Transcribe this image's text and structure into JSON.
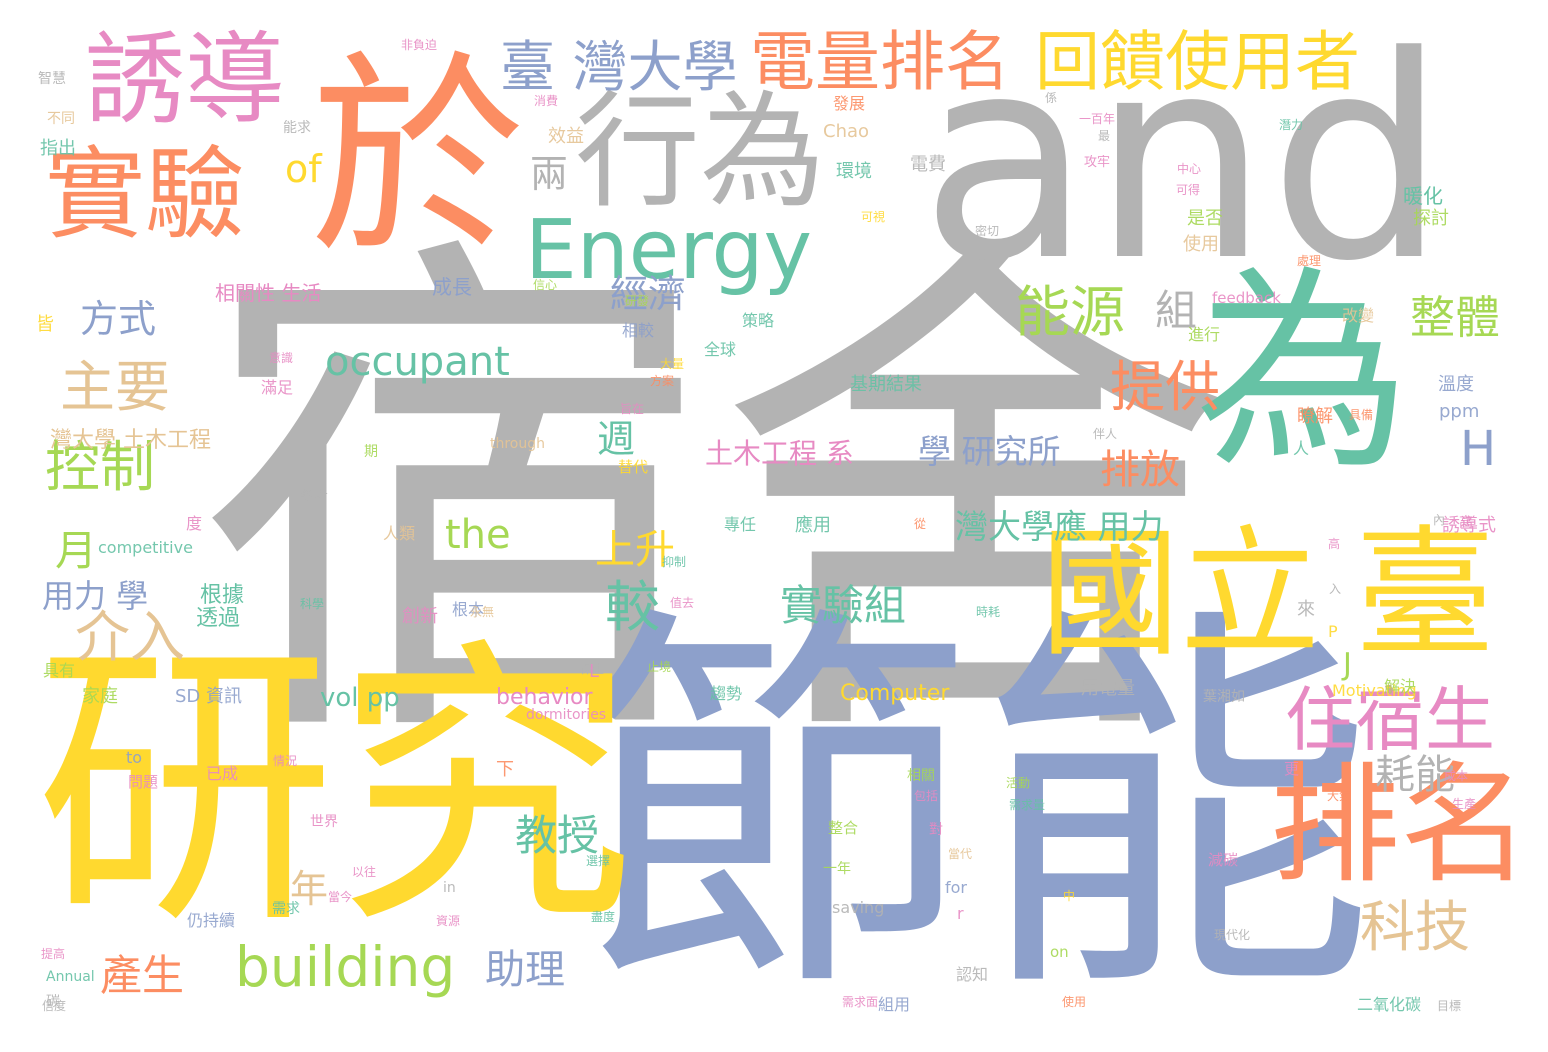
{
  "palette": {
    "gray": "#B3B3B3",
    "orange": "#FC8D62",
    "teal": "#66C2A5",
    "blue": "#8DA0CB",
    "pink": "#E78AC3",
    "green": "#A6D854",
    "yellow": "#FFD92F",
    "tan": "#E5C494"
  },
  "words": [
    {
      "text": "宿舍",
      "color": "gray"
    },
    {
      "text": "and",
      "color": "gray"
    },
    {
      "text": "節能",
      "color": "blue"
    },
    {
      "text": "研究",
      "color": "yellow"
    },
    {
      "text": "於",
      "color": "orange"
    },
    {
      "text": "為",
      "color": "teal"
    },
    {
      "text": "國立",
      "color": "yellow"
    },
    {
      "text": "臺",
      "color": "yellow"
    },
    {
      "text": "排名",
      "color": "orange"
    },
    {
      "text": "行為",
      "color": "gray"
    },
    {
      "text": "誘導",
      "color": "pink"
    },
    {
      "text": "實驗",
      "color": "orange"
    },
    {
      "text": "Energy",
      "color": "teal"
    },
    {
      "text": "住宿生",
      "color": "pink"
    },
    {
      "text": "電量排名",
      "color": "orange"
    },
    {
      "text": "回饋使用者",
      "color": "yellow"
    },
    {
      "text": "臺 灣大學",
      "color": "blue"
    },
    {
      "text": "building",
      "color": "green"
    },
    {
      "text": "能源",
      "color": "green"
    },
    {
      "text": "控制",
      "color": "green"
    },
    {
      "text": "介入",
      "color": "tan"
    },
    {
      "text": "主要",
      "color": "tan"
    },
    {
      "text": "提供",
      "color": "orange"
    },
    {
      "text": "科技",
      "color": "tan"
    },
    {
      "text": "整體",
      "color": "green"
    },
    {
      "text": "occupant",
      "color": "teal"
    },
    {
      "text": "較",
      "color": "teal"
    },
    {
      "text": "實驗組",
      "color": "teal"
    },
    {
      "text": "經濟",
      "color": "blue"
    },
    {
      "text": "方式",
      "color": "blue"
    },
    {
      "text": "排放",
      "color": "orange"
    },
    {
      "text": "耗能",
      "color": "gray"
    },
    {
      "text": "教授",
      "color": "teal"
    },
    {
      "text": "產生",
      "color": "orange"
    },
    {
      "text": "助理",
      "color": "blue"
    },
    {
      "text": "the",
      "color": "green"
    },
    {
      "text": "上升",
      "color": "yellow"
    },
    {
      "text": "週",
      "color": "teal"
    },
    {
      "text": "組",
      "color": "gray"
    },
    {
      "text": "兩",
      "color": "gray"
    },
    {
      "text": "of",
      "color": "yellow"
    },
    {
      "text": "H",
      "color": "blue"
    },
    {
      "text": "月",
      "color": "green"
    },
    {
      "text": "年",
      "color": "tan"
    },
    {
      "text": "J",
      "color": "green"
    },
    {
      "text": "灣大學應 用力",
      "color": "teal"
    },
    {
      "text": "學 研究所",
      "color": "blue"
    },
    {
      "text": "土木工程 系",
      "color": "pink"
    },
    {
      "text": "用力 學",
      "color": "blue"
    },
    {
      "text": "vol pp",
      "color": "teal"
    },
    {
      "text": "behavior",
      "color": "pink"
    },
    {
      "text": "Computer",
      "color": "yellow"
    },
    {
      "text": "灣大學 土木工程",
      "color": "tan"
    },
    {
      "text": "相關性 生活",
      "color": "pink"
    },
    {
      "text": "成長",
      "color": "blue"
    },
    {
      "text": "透過",
      "color": "teal"
    },
    {
      "text": "根據",
      "color": "teal"
    },
    {
      "text": "基期結果",
      "color": "teal"
    },
    {
      "text": "瞭解",
      "color": "orange"
    },
    {
      "text": "ppm",
      "color": "blue"
    },
    {
      "text": "溫度",
      "color": "blue"
    },
    {
      "text": "暖化",
      "color": "teal"
    },
    {
      "text": "探討",
      "color": "green"
    },
    {
      "text": "是否",
      "color": "green"
    },
    {
      "text": "使用",
      "color": "tan"
    },
    {
      "text": "環境",
      "color": "teal"
    },
    {
      "text": "電費",
      "color": "gray"
    },
    {
      "text": "發展",
      "color": "orange"
    },
    {
      "text": "Chao",
      "color": "tan"
    },
    {
      "text": "效益",
      "color": "tan"
    },
    {
      "text": "指出",
      "color": "teal"
    },
    {
      "text": "皆",
      "color": "yellow"
    },
    {
      "text": "feedback",
      "color": "pink"
    },
    {
      "text": "改變",
      "color": "tan"
    },
    {
      "text": "進行",
      "color": "green"
    },
    {
      "text": "相較",
      "color": "blue"
    },
    {
      "text": "策略",
      "color": "teal"
    },
    {
      "text": "全球",
      "color": "teal"
    },
    {
      "text": "滿足",
      "color": "pink"
    },
    {
      "text": "人",
      "color": "teal"
    },
    {
      "text": "誘導式",
      "color": "pink"
    },
    {
      "text": "應用",
      "color": "teal"
    },
    {
      "text": "專任",
      "color": "teal"
    },
    {
      "text": "人類",
      "color": "tan"
    },
    {
      "text": "創新",
      "color": "pink"
    },
    {
      "text": "根本",
      "color": "blue"
    },
    {
      "text": "L",
      "color": "pink"
    },
    {
      "text": "趨勢",
      "color": "teal"
    },
    {
      "text": "家庭",
      "color": "green"
    },
    {
      "text": "SD 資訊",
      "color": "blue"
    },
    {
      "text": "用電量",
      "color": "gray"
    },
    {
      "text": "葉湘如",
      "color": "gray"
    },
    {
      "text": "dormitories",
      "color": "pink"
    },
    {
      "text": "Motivating",
      "color": "yellow"
    },
    {
      "text": "解決",
      "color": "green"
    },
    {
      "text": "來",
      "color": "gray"
    },
    {
      "text": "P",
      "color": "yellow"
    },
    {
      "text": "度",
      "color": "pink"
    },
    {
      "text": "參考",
      "color": "gray"
    },
    {
      "text": "期",
      "color": "green"
    },
    {
      "text": "through",
      "color": "tan"
    },
    {
      "text": "competitive",
      "color": "teal"
    },
    {
      "text": "具有",
      "color": "green"
    },
    {
      "text": "下",
      "color": "orange"
    },
    {
      "text": "to",
      "color": "blue"
    },
    {
      "text": "問題",
      "color": "pink"
    },
    {
      "text": "已成",
      "color": "pink"
    },
    {
      "text": "更",
      "color": "pink"
    },
    {
      "text": "相關",
      "color": "green"
    },
    {
      "text": "世界",
      "color": "pink"
    },
    {
      "text": "整合",
      "color": "green"
    },
    {
      "text": "對",
      "color": "pink"
    },
    {
      "text": "一年",
      "color": "green"
    },
    {
      "text": "saving",
      "color": "gray"
    },
    {
      "text": "for",
      "color": "blue"
    },
    {
      "text": "r",
      "color": "pink"
    },
    {
      "text": "減碳",
      "color": "pink"
    },
    {
      "text": "仍持續",
      "color": "blue"
    },
    {
      "text": "需求",
      "color": "teal"
    },
    {
      "text": "in",
      "color": "gray"
    },
    {
      "text": "認知",
      "color": "gray"
    },
    {
      "text": "on",
      "color": "green"
    },
    {
      "text": "組用",
      "color": "blue"
    },
    {
      "text": "二氧化碳",
      "color": "teal"
    },
    {
      "text": "Annual",
      "color": "teal"
    },
    {
      "text": "碳",
      "color": "gray"
    },
    {
      "text": "智慧",
      "color": "gray"
    },
    {
      "text": "非負迫",
      "color": "pink"
    },
    {
      "text": "不同",
      "color": "tan"
    },
    {
      "text": "能求",
      "color": "gray"
    },
    {
      "text": "信心",
      "color": "green"
    },
    {
      "text": "研發",
      "color": "green"
    },
    {
      "text": "係",
      "color": "gray"
    },
    {
      "text": "一百年",
      "color": "pink"
    },
    {
      "text": "潛力",
      "color": "teal"
    },
    {
      "text": "消費",
      "color": "pink"
    },
    {
      "text": "攻牢",
      "color": "pink"
    },
    {
      "text": "中心",
      "color": "pink"
    },
    {
      "text": "可得",
      "color": "pink"
    },
    {
      "text": "可視",
      "color": "yellow"
    },
    {
      "text": "密切",
      "color": "gray"
    },
    {
      "text": "處理",
      "color": "orange"
    },
    {
      "text": "伴人",
      "color": "gray"
    },
    {
      "text": "意識",
      "color": "pink"
    },
    {
      "text": "大量",
      "color": "yellow"
    },
    {
      "text": "方案",
      "color": "orange"
    },
    {
      "text": "旨在",
      "color": "pink"
    },
    {
      "text": "具備",
      "color": "orange"
    },
    {
      "text": "替代",
      "color": "yellow"
    },
    {
      "text": "從",
      "color": "orange"
    },
    {
      "text": "內",
      "color": "gray"
    },
    {
      "text": "高",
      "color": "pink"
    },
    {
      "text": "抑制",
      "color": "teal"
    },
    {
      "text": "值去",
      "color": "pink"
    },
    {
      "text": "科學",
      "color": "teal"
    },
    {
      "text": "永無",
      "color": "tan"
    },
    {
      "text": "時耗",
      "color": "teal"
    },
    {
      "text": "入",
      "color": "gray"
    },
    {
      "text": "止境",
      "color": "green"
    },
    {
      "text": "保生",
      "color": "gray"
    },
    {
      "text": "高",
      "color": "pink"
    },
    {
      "text": "情況",
      "color": "pink"
    },
    {
      "text": "活動",
      "color": "green"
    },
    {
      "text": "需求量",
      "color": "teal"
    },
    {
      "text": "成本",
      "color": "pink"
    },
    {
      "text": "大氣",
      "color": "orange"
    },
    {
      "text": "生產",
      "color": "pink"
    },
    {
      "text": "包括",
      "color": "pink"
    },
    {
      "text": "當代",
      "color": "tan"
    },
    {
      "text": "中",
      "color": "yellow"
    },
    {
      "text": "以往",
      "color": "pink"
    },
    {
      "text": "當今",
      "color": "pink"
    },
    {
      "text": "選擇",
      "color": "teal"
    },
    {
      "text": "資源",
      "color": "pink"
    },
    {
      "text": "盡度",
      "color": "teal"
    },
    {
      "text": "最",
      "color": "gray"
    },
    {
      "text": "現代化",
      "color": "gray"
    },
    {
      "text": "需求面",
      "color": "pink"
    },
    {
      "text": "使用",
      "color": "orange"
    },
    {
      "text": "目標",
      "color": "gray"
    },
    {
      "text": "信度",
      "color": "gray"
    },
    {
      "text": "提高",
      "color": "pink"
    }
  ]
}
